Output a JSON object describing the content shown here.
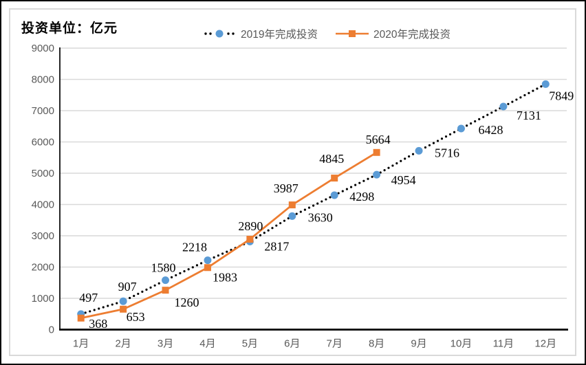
{
  "chart_data": {
    "type": "line",
    "unit_label": "投资单位：亿元",
    "categories": [
      "1月",
      "2月",
      "3月",
      "4月",
      "5月",
      "6月",
      "7月",
      "8月",
      "9月",
      "10月",
      "11月",
      "12月"
    ],
    "yticks": [
      0,
      1000,
      2000,
      3000,
      4000,
      5000,
      6000,
      7000,
      8000,
      9000
    ],
    "ylim": [
      0,
      9000
    ],
    "grid": true,
    "legend_position": "top",
    "series": [
      {
        "name": "2019年完成投资",
        "values": [
          497,
          907,
          1580,
          2218,
          2817,
          3630,
          4298,
          4954,
          5716,
          6428,
          7131,
          7849
        ],
        "marker": "circle",
        "marker_color": "#5B9BD5",
        "line_color": "#000000",
        "line_style": "dotted",
        "label_offsets": [
          [
            11,
            -24
          ],
          [
            6,
            -21
          ],
          [
            -3,
            -18
          ],
          [
            -19,
            -19
          ],
          [
            39,
            7
          ],
          [
            41,
            2
          ],
          [
            40,
            2
          ],
          [
            39,
            8
          ],
          [
            41,
            3
          ],
          [
            43,
            2
          ],
          [
            37,
            13
          ],
          [
            23,
            17
          ]
        ]
      },
      {
        "name": "2020年完成投资",
        "values": [
          368,
          653,
          1260,
          1983,
          2890,
          3987,
          4845,
          5664
        ],
        "marker": "square",
        "marker_color": "#ED7D31",
        "line_color": "#ED7D31",
        "line_style": "solid",
        "label_offsets": [
          [
            25,
            8
          ],
          [
            18,
            11
          ],
          [
            31,
            18
          ],
          [
            25,
            14
          ],
          [
            1,
            -19
          ],
          [
            -9,
            -24
          ],
          [
            -4,
            -28
          ],
          [
            2,
            -19
          ]
        ]
      }
    ],
    "colors": {
      "gridline": "#D9D9D9",
      "axis_line": "#000000",
      "tick_label": "#595959",
      "data_label": "#000000",
      "chart_border": "#D9D9D9",
      "frame": "#000000"
    }
  }
}
